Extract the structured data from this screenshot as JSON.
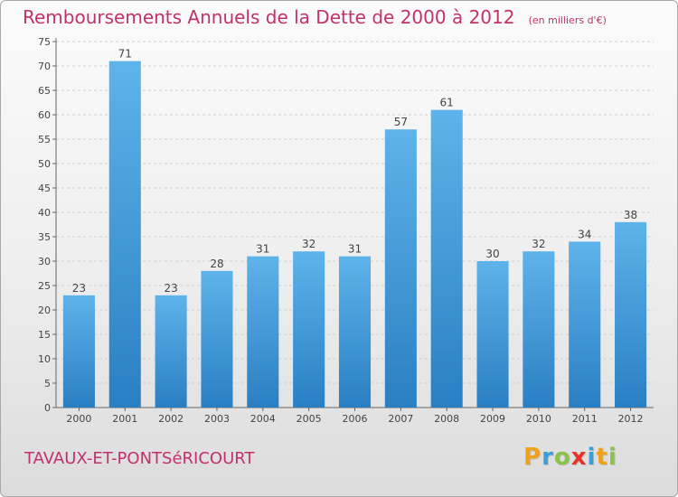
{
  "header": {
    "title": "Remboursements Annuels de la Dette de 2000 à 2012",
    "subtitle": "(en milliers d'€)"
  },
  "footer": {
    "commune": "TAVAUX-ET-PONTSéRICOURT",
    "logo_letters": [
      "P",
      "r",
      "o",
      "x",
      "i",
      "t",
      "i"
    ],
    "logo_colors": [
      "#f0a11c",
      "#3aa0dc",
      "#8bc34a",
      "#e5332a",
      "#3aa0dc",
      "#f0a11c",
      "#8bc34a"
    ]
  },
  "colors": {
    "title": "#c2316b",
    "bar_light": "#5eb3ea",
    "bar_dark": "#2a7fc3"
  },
  "chart_data": {
    "type": "bar",
    "categories": [
      "2000",
      "2001",
      "2002",
      "2003",
      "2004",
      "2005",
      "2006",
      "2007",
      "2008",
      "2009",
      "2010",
      "2011",
      "2012"
    ],
    "values": [
      23,
      71,
      23,
      28,
      31,
      32,
      31,
      57,
      61,
      30,
      32,
      34,
      38
    ],
    "ylim": [
      0,
      75
    ],
    "yticks": [
      0,
      5,
      10,
      15,
      20,
      25,
      30,
      35,
      40,
      45,
      50,
      55,
      60,
      65,
      70,
      75
    ],
    "grid": true
  }
}
